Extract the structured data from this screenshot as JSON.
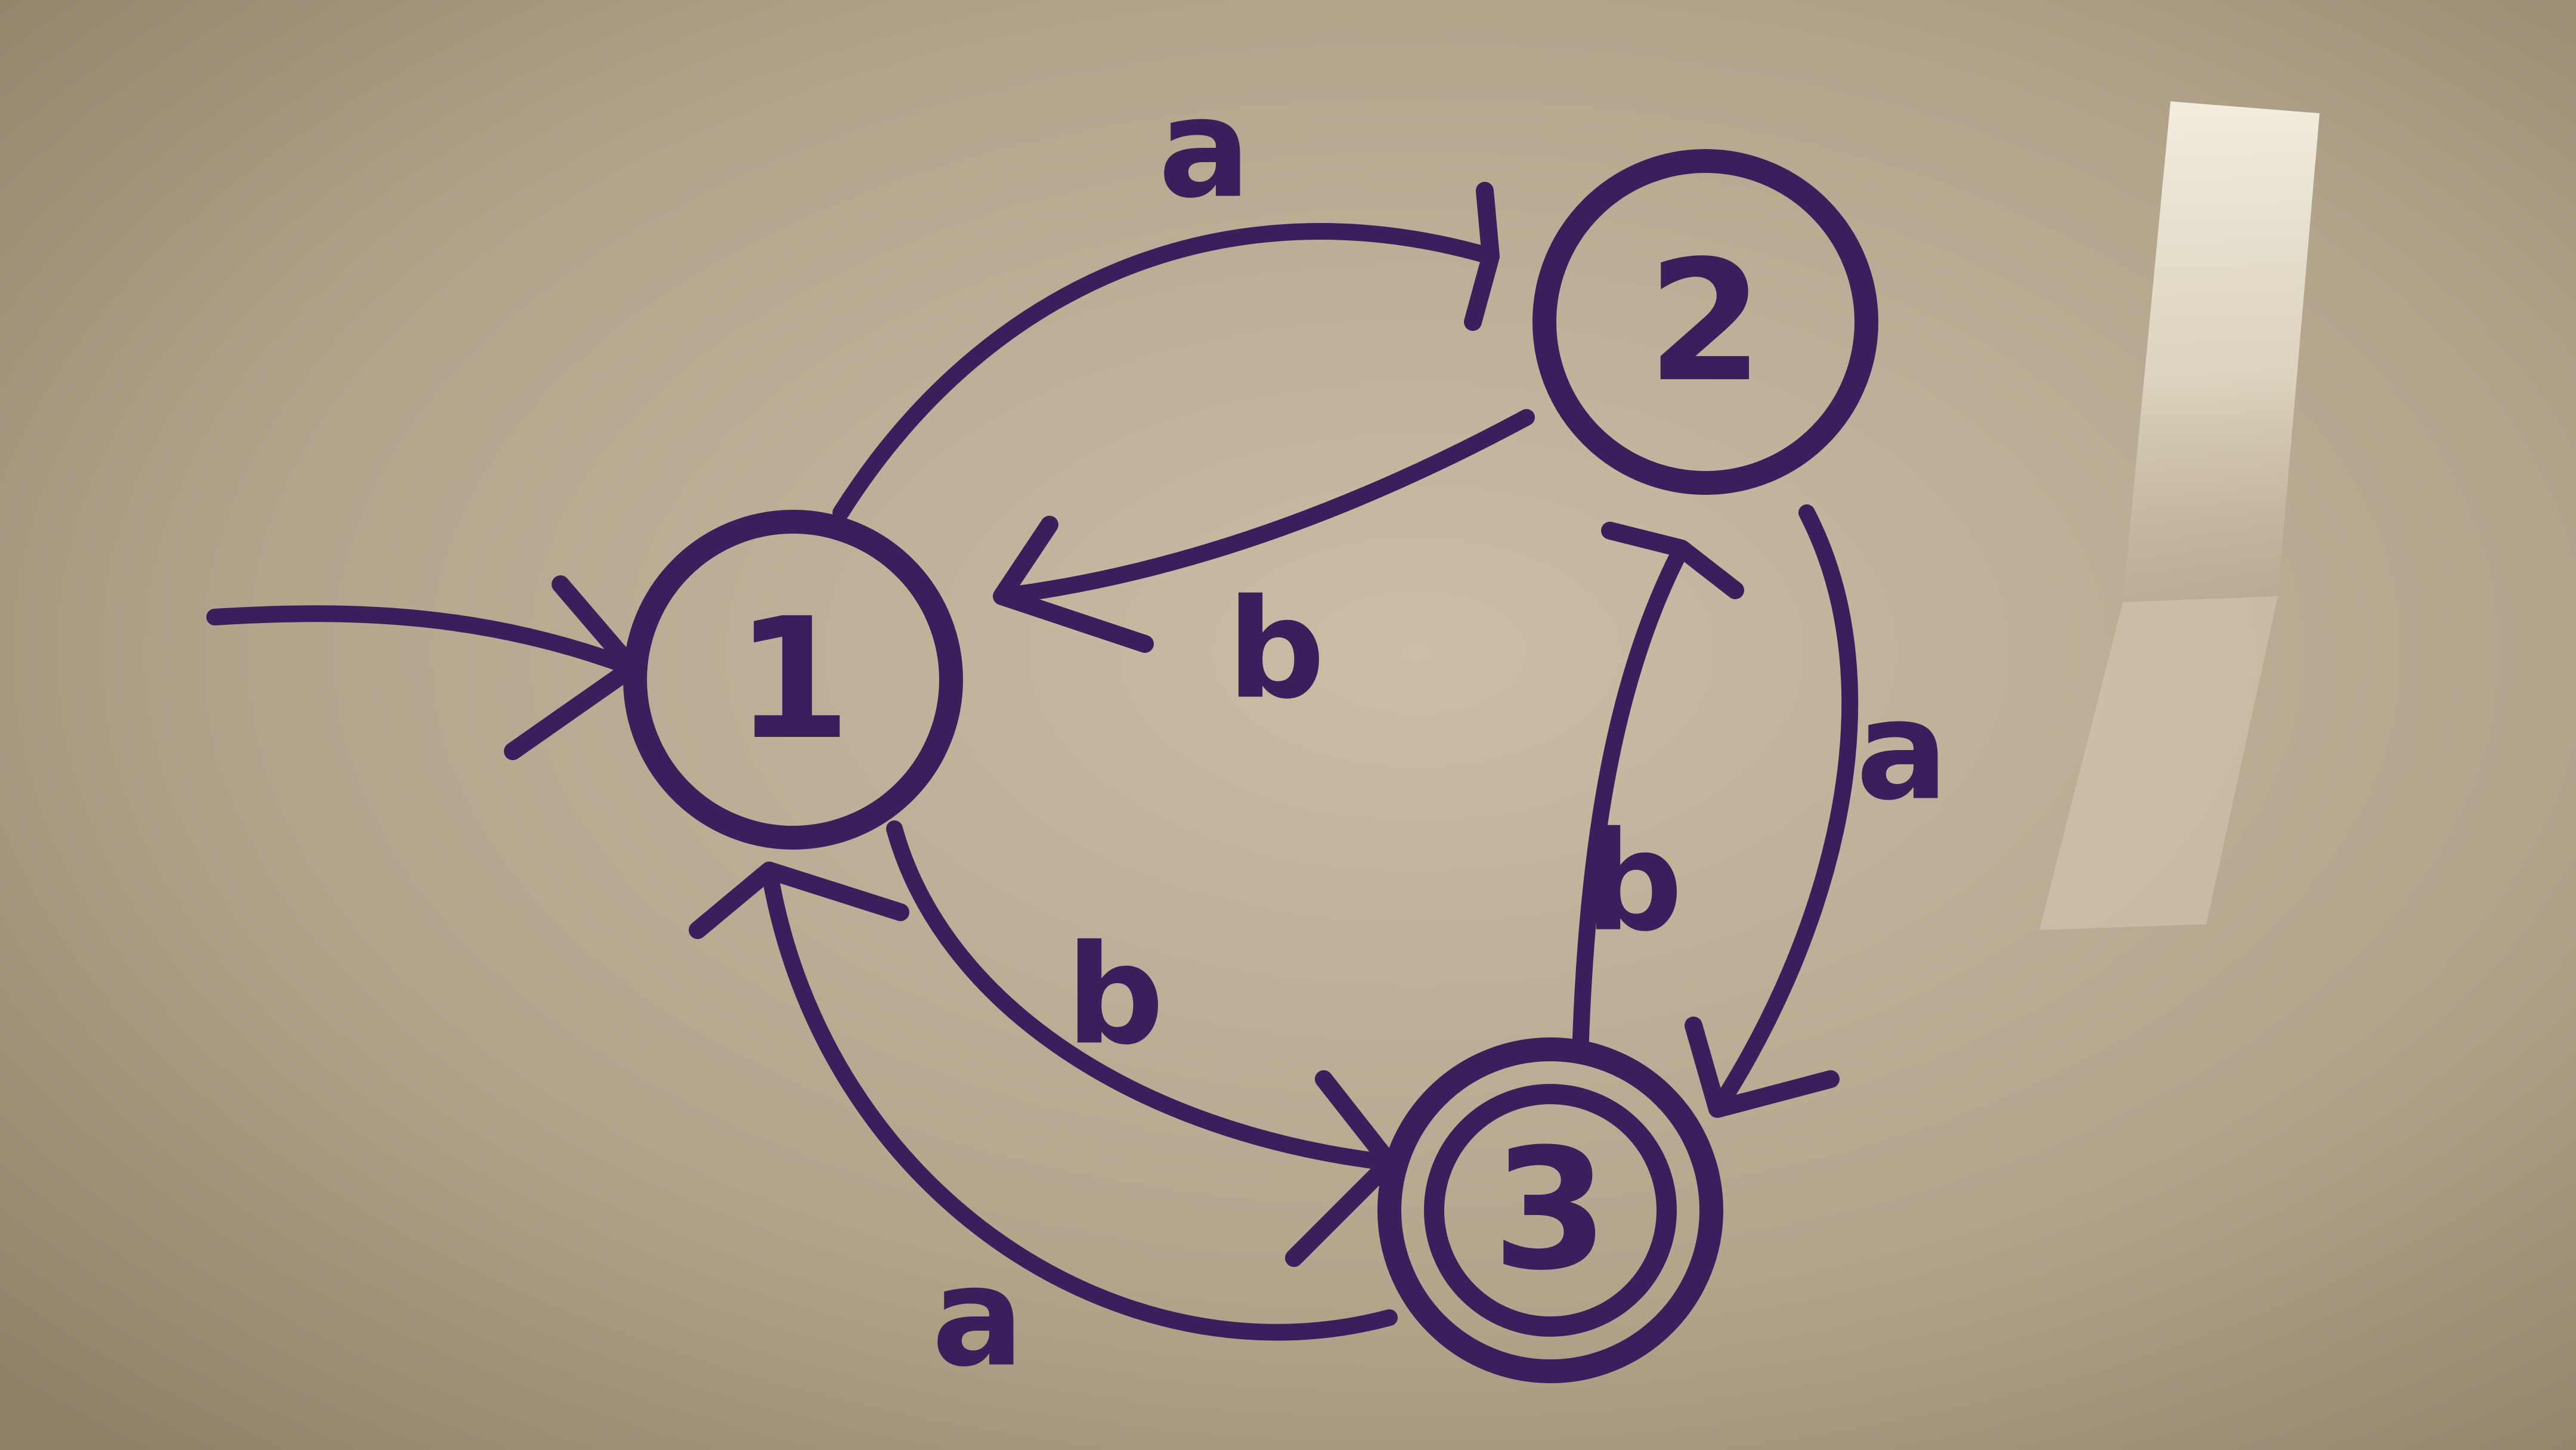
{
  "diagram": {
    "states": [
      {
        "id": "1",
        "label": "1",
        "start": true,
        "accepting": false
      },
      {
        "id": "2",
        "label": "2",
        "start": false,
        "accepting": false
      },
      {
        "id": "3",
        "label": "3",
        "start": false,
        "accepting": true
      }
    ],
    "transitions": [
      {
        "from": "1",
        "to": "2",
        "symbol": "a"
      },
      {
        "from": "2",
        "to": "1",
        "symbol": "b"
      },
      {
        "from": "1",
        "to": "3",
        "symbol": "b"
      },
      {
        "from": "3",
        "to": "1",
        "symbol": "a"
      },
      {
        "from": "2",
        "to": "3",
        "symbol": "a"
      },
      {
        "from": "3",
        "to": "2",
        "symbol": "b"
      }
    ]
  },
  "colors": {
    "ink": "#3a1f5c",
    "board": "#b8a992",
    "glare": "#f2ecdc"
  }
}
